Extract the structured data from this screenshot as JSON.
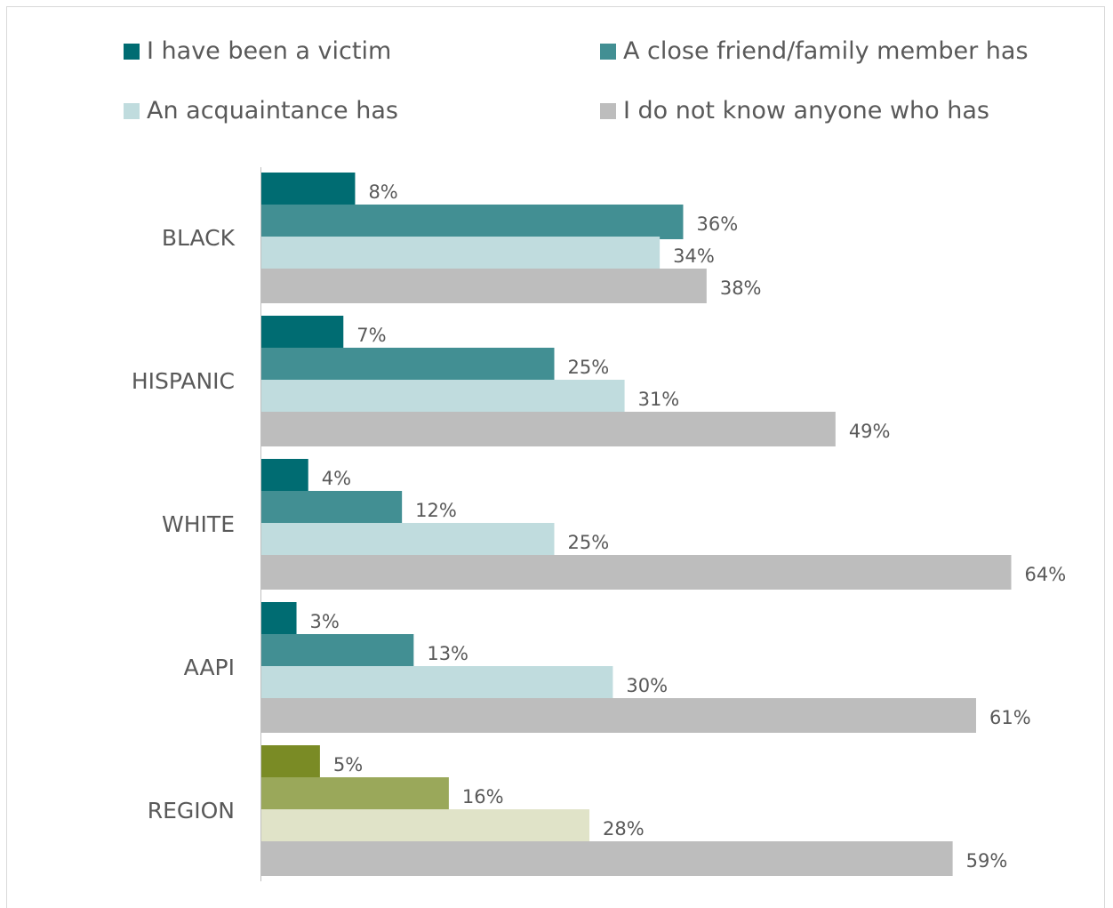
{
  "chart_data": {
    "type": "bar",
    "orientation": "horizontal",
    "categories": [
      "BLACK",
      "HISPANIC",
      "WHITE",
      "AAPI",
      "REGION"
    ],
    "series": [
      {
        "name": "I have been a victim",
        "values": [
          8,
          7,
          4,
          3,
          5
        ]
      },
      {
        "name": "A close friend/family member has",
        "values": [
          36,
          25,
          12,
          13,
          16
        ]
      },
      {
        "name": "An acquaintance has",
        "values": [
          34,
          31,
          25,
          30,
          28
        ]
      },
      {
        "name": "I do not know anyone who has",
        "values": [
          38,
          49,
          64,
          61,
          59
        ]
      }
    ],
    "value_suffix": "%",
    "xlim": [
      0,
      64
    ],
    "grid": false,
    "legend_position": "top",
    "colors": {
      "default": [
        "#006C72",
        "#428F93",
        "#C0DCDE",
        "#BDBDBD"
      ],
      "REGION": [
        "#7A8B25",
        "#9AA85A",
        "#E0E3C8",
        "#BDBDBD"
      ]
    },
    "legend_colors": [
      "#006C72",
      "#428F93",
      "#C0DCDE",
      "#BDBDBD"
    ]
  }
}
